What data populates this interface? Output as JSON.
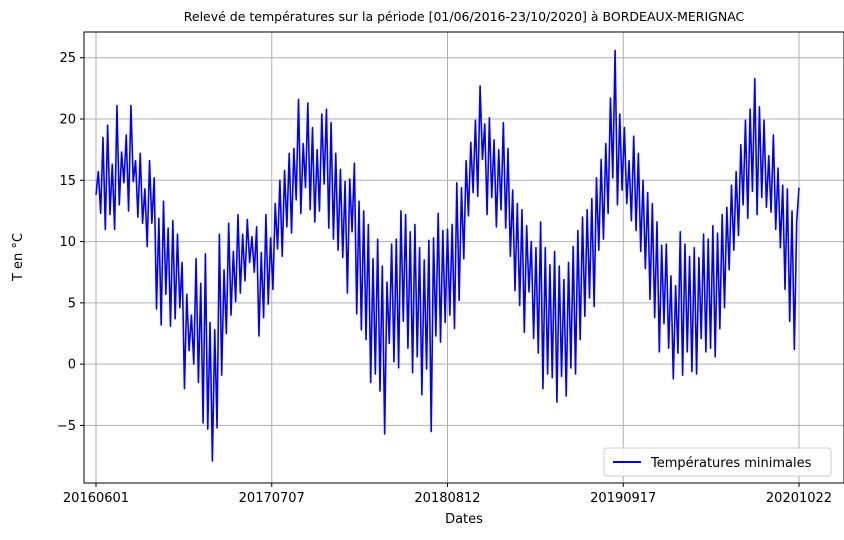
{
  "chart_data": {
    "type": "line",
    "title": "Relevé de températures sur la période [01/06/2016-23/10/2020] à BORDEAUX-MERIGNAC",
    "xlabel": "Dates",
    "ylabel": "T en °C",
    "x_ticks": [
      "20160601",
      "20170707",
      "20180812",
      "20190917",
      "20201022"
    ],
    "y_ticks": [
      -5,
      0,
      5,
      10,
      15,
      20,
      25
    ],
    "ylim": [
      -9.7,
      27.1
    ],
    "grid": true,
    "legend_position": "bottom-right",
    "series": [
      {
        "name": "Températures minimales",
        "color": "#0000ff",
        "x_start": "2016-06-01",
        "x_end": "2020-10-23",
        "values": [
          13.8,
          15.7,
          12.3,
          18.5,
          11.0,
          19.5,
          12.2,
          16.3,
          11.0,
          21.1,
          13.0,
          17.3,
          14.8,
          18.7,
          12.5,
          21.1,
          14.9,
          16.6,
          12.0,
          17.2,
          11.5,
          14.3,
          9.6,
          16.6,
          11.5,
          15.2,
          4.5,
          11.9,
          3.2,
          13.3,
          5.7,
          11.1,
          3.1,
          11.7,
          3.7,
          10.6,
          4.6,
          8.3,
          -2.0,
          5.7,
          1.1,
          4.0,
          0.0,
          8.6,
          -1.5,
          6.6,
          -4.8,
          9.0,
          -5.3,
          3.4,
          -7.9,
          2.8,
          -5.2,
          10.6,
          -0.9,
          7.7,
          2.5,
          11.5,
          4.0,
          9.2,
          5.1,
          12.2,
          5.8,
          10.6,
          6.8,
          11.8,
          8.3,
          10.4,
          7.5,
          11.2,
          2.3,
          9.1,
          3.8,
          12.2,
          4.9,
          10.3,
          6.1,
          13.1,
          9.4,
          15.0,
          8.8,
          15.8,
          11.2,
          17.2,
          10.7,
          17.6,
          13.4,
          21.6,
          12.3,
          18.0,
          14.4,
          21.3,
          12.6,
          19.3,
          11.6,
          17.5,
          12.5,
          20.4,
          14.7,
          20.8,
          11.1,
          19.7,
          10.2,
          17.2,
          9.3,
          15.9,
          8.7,
          14.9,
          5.8,
          15.1,
          10.8,
          16.4,
          4.1,
          13.3,
          2.8,
          12.5,
          2.0,
          11.4,
          -1.5,
          8.6,
          -0.8,
          10.2,
          -2.2,
          8.0,
          -5.7,
          6.7,
          1.7,
          9.8,
          0.2,
          10.2,
          -0.3,
          12.5,
          3.5,
          12.2,
          1.3,
          10.8,
          -0.7,
          11.4,
          0.6,
          9.5,
          -2.5,
          8.5,
          -0.4,
          10.1,
          -5.5,
          10.3,
          2.3,
          12.3,
          1.8,
          10.9,
          3.4,
          11.0,
          4.0,
          11.4,
          2.9,
          14.8,
          5.2,
          14.4,
          8.6,
          16.6,
          12.1,
          18.1,
          14.0,
          19.9,
          13.7,
          22.7,
          16.7,
          19.6,
          12.2,
          20.1,
          13.6,
          18.3,
          11.2,
          17.5,
          12.6,
          19.7,
          11.1,
          17.6,
          8.8,
          14.2,
          6.0,
          13.1,
          4.8,
          12.6,
          2.6,
          11.3,
          5.9,
          10.0,
          2.1,
          9.5,
          0.9,
          11.6,
          -2.0,
          9.5,
          -0.8,
          8.1,
          -1.1,
          9.2,
          -3.1,
          8.0,
          -1.0,
          6.9,
          -2.6,
          8.3,
          -0.3,
          9.6,
          -0.8,
          10.9,
          2.0,
          12.0,
          3.9,
          12.6,
          5.4,
          13.5,
          4.7,
          15.2,
          9.3,
          16.7,
          10.2,
          18.0,
          12.3,
          21.7,
          15.2,
          25.6,
          13.0,
          20.4,
          14.2,
          19.3,
          13.1,
          16.6,
          11.7,
          18.6,
          10.9,
          17.2,
          9.2,
          15.0,
          7.8,
          14.0,
          5.3,
          13.1,
          3.8,
          11.6,
          1.0,
          9.7,
          3.3,
          9.8,
          1.3,
          7.2,
          -1.2,
          6.4,
          0.9,
          10.8,
          -0.9,
          9.8,
          1.0,
          8.8,
          -0.6,
          9.5,
          -0.8,
          8.7,
          2.1,
          10.6,
          1.0,
          10.2,
          1.3,
          11.3,
          0.6,
          10.7,
          2.9,
          12.2,
          4.6,
          12.8,
          7.7,
          14.6,
          9.3,
          15.7,
          10.5,
          17.9,
          13.0,
          19.9,
          11.9,
          20.8,
          14.1,
          23.3,
          12.2,
          21.0,
          13.6,
          19.9,
          12.8,
          17.0,
          12.4,
          18.7,
          11.0,
          16.0,
          9.5,
          14.6,
          6.1,
          14.3,
          3.5,
          12.5,
          1.2,
          11.6,
          14.4
        ]
      }
    ]
  }
}
